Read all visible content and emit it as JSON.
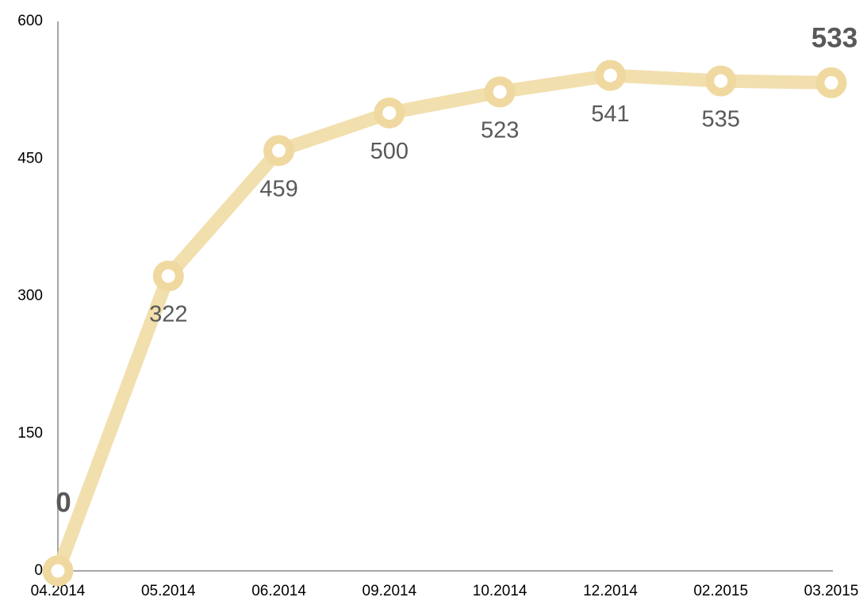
{
  "chart_data": {
    "type": "line",
    "categories": [
      "04.2014",
      "05.2014",
      "06.2014",
      "09.2014",
      "10.2014",
      "12.2014",
      "02.2015",
      "03.2015"
    ],
    "values": [
      0,
      322,
      459,
      500,
      523,
      541,
      535,
      533
    ],
    "color": "#f0d9a0",
    "ylim": [
      0,
      600
    ],
    "yticks": [
      0,
      150,
      300,
      450,
      600
    ],
    "grid": false
  }
}
